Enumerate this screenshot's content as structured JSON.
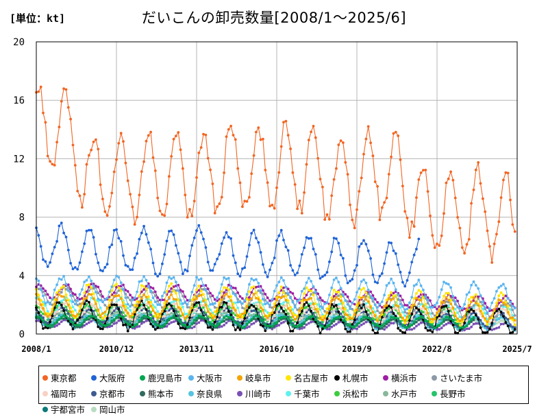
{
  "header": {
    "unit": "[単位：kt]",
    "title": "だいこんの卸売数量[2008/1～2025/6]"
  },
  "chart_data": {
    "type": "line",
    "title": "だいこんの卸売数量[2008/1～2025/6]",
    "ylabel": "[単位：kt]",
    "xlabel": "",
    "ylim": [
      0,
      20
    ],
    "yticks": [
      0,
      4,
      8,
      12,
      16,
      20
    ],
    "xlim": [
      "2008/1",
      "2025/7"
    ],
    "xticks": [
      "2008/1",
      "2010/12",
      "2013/11",
      "2016/10",
      "2019/9",
      "2022/8",
      "2025/7"
    ],
    "grid": true,
    "legend_position": "bottom",
    "series": [
      {
        "name": "東京都",
        "color": "#f26522",
        "end": "2025/6",
        "annual": [
          [
            2008,
            14.2
          ],
          [
            2009,
            13.9
          ],
          [
            2010,
            10.6
          ],
          [
            2011,
            10.9
          ],
          [
            2012,
            10.9
          ],
          [
            2013,
            10.8
          ],
          [
            2014,
            10.9
          ],
          [
            2015,
            11.6
          ],
          [
            2016,
            11.2
          ],
          [
            2017,
            11.6
          ],
          [
            2018,
            11.2
          ],
          [
            2019,
            10.4
          ],
          [
            2020,
            11.0
          ],
          [
            2021,
            10.9
          ],
          [
            2022,
            8.9
          ],
          [
            2023,
            8.4
          ],
          [
            2024,
            8.4
          ],
          [
            2025,
            8.0
          ]
        ],
        "amp": 2.9,
        "peak_month": 2
      },
      {
        "name": "大阪府",
        "color": "#1f63d6",
        "end": "2021/12",
        "annual": [
          [
            2008,
            5.9
          ],
          [
            2009,
            5.9
          ],
          [
            2010,
            5.7
          ],
          [
            2011,
            5.6
          ],
          [
            2012,
            5.7
          ],
          [
            2013,
            5.5
          ],
          [
            2014,
            5.9
          ],
          [
            2015,
            5.6
          ],
          [
            2016,
            5.5
          ],
          [
            2017,
            5.5
          ],
          [
            2018,
            5.3
          ],
          [
            2019,
            5.0
          ],
          [
            2020,
            5.0
          ],
          [
            2021,
            4.8
          ]
        ],
        "amp": 1.4,
        "peak_month": 12
      },
      {
        "name": "鹿児島市",
        "color": "#00a650",
        "end": "2023/12",
        "annual": [
          [
            2008,
            0.9
          ],
          [
            2016,
            0.85
          ],
          [
            2023,
            0.8
          ]
        ],
        "amp": 0.35,
        "peak_month": 1
      },
      {
        "name": "大阪市",
        "color": "#5ab4f0",
        "end": "2025/6",
        "annual": [
          [
            2008,
            3.0
          ],
          [
            2016,
            2.9
          ],
          [
            2021,
            2.7
          ],
          [
            2025,
            2.5
          ]
        ],
        "amp": 0.9,
        "peak_month": 12
      },
      {
        "name": "岐阜市",
        "color": "#f5a300",
        "end": "2025/6",
        "annual": [
          [
            2008,
            2.0
          ],
          [
            2016,
            1.9
          ],
          [
            2025,
            1.6
          ]
        ],
        "amp": 0.7,
        "peak_month": 12
      },
      {
        "name": "名古屋市",
        "color": "#ffe600",
        "end": "2025/6",
        "annual": [
          [
            2008,
            2.3
          ],
          [
            2016,
            2.2
          ],
          [
            2025,
            1.7
          ]
        ],
        "amp": 1.0,
        "peak_month": 12
      },
      {
        "name": "札幌市",
        "color": "#000000",
        "end": "2025/6",
        "annual": [
          [
            2008,
            1.3
          ],
          [
            2016,
            1.2
          ],
          [
            2025,
            0.9
          ]
        ],
        "amp": 0.9,
        "peak_month": 11
      },
      {
        "name": "横浜市",
        "color": "#9e1fa3",
        "end": "2025/6",
        "annual": [
          [
            2008,
            2.9
          ],
          [
            2016,
            2.8
          ],
          [
            2025,
            2.0
          ]
        ],
        "amp": 0.5,
        "peak_month": 2
      },
      {
        "name": "さいたま市",
        "color": "#8c99a6",
        "end": "2025/6",
        "annual": [
          [
            2008,
            2.6
          ],
          [
            2016,
            2.4
          ],
          [
            2025,
            1.6
          ]
        ],
        "amp": 0.6,
        "peak_month": 2
      },
      {
        "name": "福岡市",
        "color": "#f7d2c4",
        "end": "2025/6",
        "annual": [
          [
            2008,
            1.6
          ],
          [
            2016,
            1.5
          ],
          [
            2025,
            1.2
          ]
        ],
        "amp": 0.5,
        "peak_month": 1
      },
      {
        "name": "京都市",
        "color": "#3d5a91",
        "end": "2025/6",
        "annual": [
          [
            2008,
            1.3
          ],
          [
            2016,
            1.2
          ],
          [
            2025,
            0.9
          ]
        ],
        "amp": 0.5,
        "peak_month": 12
      },
      {
        "name": "熊本市",
        "color": "#2e6b5e",
        "end": "2023/12",
        "annual": [
          [
            2008,
            0.8
          ],
          [
            2016,
            0.75
          ],
          [
            2023,
            0.7
          ]
        ],
        "amp": 0.3,
        "peak_month": 1
      },
      {
        "name": "奈良県",
        "color": "#56c3e0",
        "end": "2025/6",
        "annual": [
          [
            2008,
            0.9
          ],
          [
            2016,
            0.85
          ],
          [
            2025,
            0.7
          ]
        ],
        "amp": 0.4,
        "peak_month": 12
      },
      {
        "name": "川崎市",
        "color": "#7a4fb5",
        "end": "2025/6",
        "annual": [
          [
            2008,
            0.7
          ],
          [
            2016,
            0.65
          ],
          [
            2025,
            0.5
          ]
        ],
        "amp": 0.25,
        "peak_month": 2
      },
      {
        "name": "千葉市",
        "color": "#5ff0f0",
        "end": "2025/6",
        "annual": [
          [
            2008,
            1.9
          ],
          [
            2016,
            1.7
          ],
          [
            2025,
            1.3
          ]
        ],
        "amp": 0.6,
        "peak_month": 2
      },
      {
        "name": "浜松市",
        "color": "#3ccc3c",
        "end": "2023/12",
        "annual": [
          [
            2008,
            1.6
          ],
          [
            2016,
            1.5
          ],
          [
            2023,
            1.3
          ]
        ],
        "amp": 0.5,
        "peak_month": 12
      },
      {
        "name": "水戸市",
        "color": "#86b89a",
        "end": "2025/6",
        "annual": [
          [
            2008,
            1.1
          ],
          [
            2016,
            1.0
          ],
          [
            2025,
            0.8
          ]
        ],
        "amp": 0.4,
        "peak_month": 12
      },
      {
        "name": "長野市",
        "color": "#26c46a",
        "end": "2023/12",
        "annual": [
          [
            2008,
            1.4
          ],
          [
            2016,
            1.3
          ],
          [
            2023,
            1.1
          ]
        ],
        "amp": 0.6,
        "peak_month": 11
      },
      {
        "name": "宇都宮市",
        "color": "#0d7a7a",
        "end": "2023/12",
        "annual": [
          [
            2008,
            0.9
          ],
          [
            2016,
            0.85
          ],
          [
            2023,
            0.75
          ]
        ],
        "amp": 0.35,
        "peak_month": 12
      },
      {
        "name": "岡山市",
        "color": "#b8dcc0",
        "end": "2025/6",
        "annual": [
          [
            2008,
            0.8
          ],
          [
            2016,
            0.75
          ],
          [
            2025,
            0.6
          ]
        ],
        "amp": 0.3,
        "peak_month": 12
      }
    ]
  }
}
